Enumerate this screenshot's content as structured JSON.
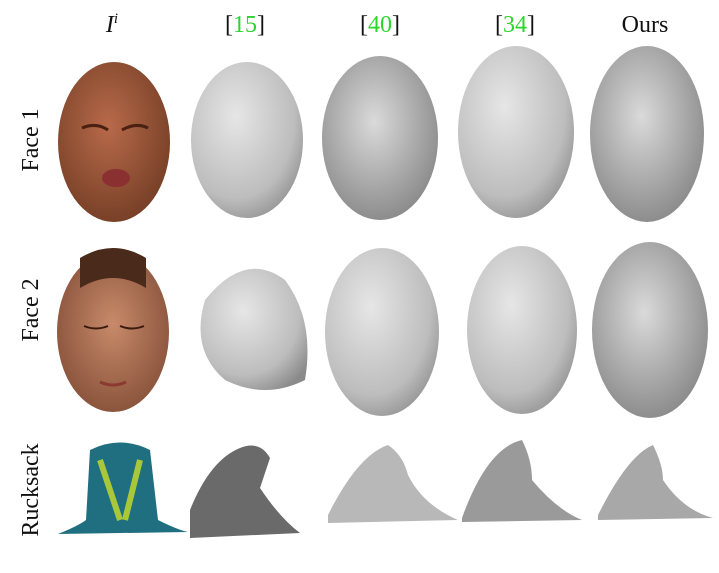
{
  "figure": {
    "columns": [
      {
        "base": "I",
        "sup": "i"
      },
      {
        "left": "[",
        "ref": "15",
        "right": "]"
      },
      {
        "left": "[",
        "ref": "40",
        "right": "]"
      },
      {
        "left": "[",
        "ref": "34",
        "right": "]"
      },
      {
        "label": "Ours"
      }
    ],
    "rows": [
      "Face 1",
      "Face 2",
      "Rucksack"
    ]
  }
}
